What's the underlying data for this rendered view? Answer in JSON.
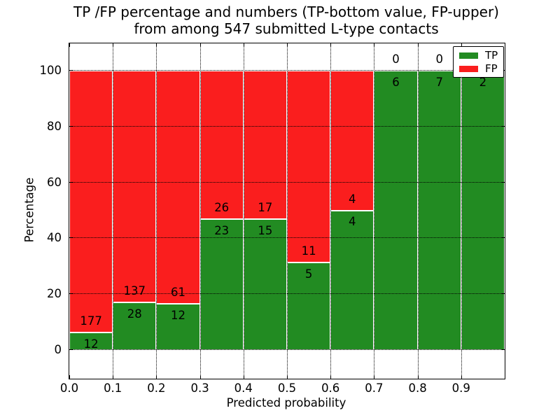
{
  "figure": {
    "title_line1": "TP /FP percentage and numbers (TP-bottom value, FP-upper)",
    "title_line2": "from among 547 submitted L-type contacts"
  },
  "axes": {
    "xlabel": "Predicted probability",
    "ylabel": "Percentage",
    "x_tick_labels": [
      "0.0",
      "0.1",
      "0.2",
      "0.3",
      "0.4",
      "0.5",
      "0.6",
      "0.7",
      "0.8",
      "0.9"
    ],
    "x_tick_values": [
      0,
      0.1,
      0.2,
      0.3,
      0.4,
      0.5,
      0.6,
      0.7,
      0.8,
      0.9
    ],
    "y_tick_labels": [
      "0",
      "20",
      "40",
      "60",
      "80",
      "100"
    ],
    "y_tick_values": [
      0,
      20,
      40,
      60,
      80,
      100
    ],
    "xlim": [
      0,
      1
    ],
    "ylim": [
      -10.3,
      109.8
    ],
    "grid_style": "dotted"
  },
  "legend": {
    "position": "upper-right",
    "items": [
      {
        "label": "TP",
        "color": "#228b22"
      },
      {
        "label": "FP",
        "color": "#fa1e1e"
      }
    ]
  },
  "colors": {
    "tp": "#228b22",
    "fp": "#fa1e1e",
    "bar_edge": "#ffffff",
    "grid": "#000000",
    "background": "#ffffff",
    "text": "#000000"
  },
  "chart_data": {
    "type": "bar",
    "variant": "stacked-percentage",
    "title": "TP /FP percentage and numbers (TP-bottom value, FP-upper) from among 547 submitted L-type contacts",
    "xlabel": "Predicted probability",
    "ylabel": "Percentage",
    "total_contacts": 547,
    "bin_width": 0.1,
    "categories": [
      "0.0-0.1",
      "0.1-0.2",
      "0.2-0.3",
      "0.3-0.4",
      "0.4-0.5",
      "0.5-0.6",
      "0.6-0.7",
      "0.7-0.8",
      "0.8-0.9",
      "0.9-1.0"
    ],
    "series": [
      {
        "name": "TP",
        "stack_position": "bottom",
        "color": "#228b22",
        "counts": [
          12,
          28,
          12,
          23,
          15,
          5,
          4,
          6,
          7,
          2
        ]
      },
      {
        "name": "FP",
        "stack_position": "top",
        "color": "#fa1e1e",
        "counts": [
          177,
          137,
          61,
          26,
          17,
          11,
          4,
          0,
          0,
          0
        ]
      }
    ],
    "tp_percent": [
      6.3,
      17.0,
      16.4,
      46.9,
      46.9,
      31.3,
      50.0,
      100.0,
      100.0,
      100.0
    ],
    "xlim": [
      0,
      1
    ],
    "ylim": [
      -10.3,
      109.8
    ],
    "legend_position": "upper right",
    "grid": true
  }
}
